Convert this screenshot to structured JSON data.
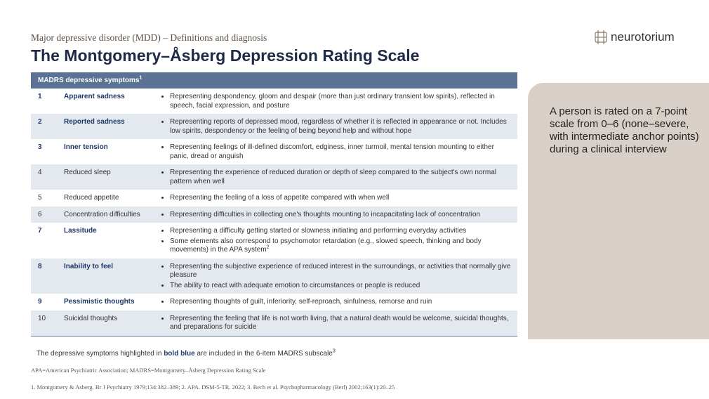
{
  "header": {
    "subtitle": "Major depressive disorder (MDD) – Definitions and diagnosis",
    "title": "The Montgomery–Åsberg Depression Rating Scale",
    "logo": "neurotorium"
  },
  "table": {
    "header": {
      "text": "MADRS depressive symptoms",
      "sup": "1"
    },
    "rows": [
      {
        "number": 1,
        "symptom": "Apparent sadness",
        "highlighted": true,
        "bullets": [
          "Representing despondency, gloom and despair (more than just ordinary transient low spirits), reflected in speech, facial expression, and posture"
        ]
      },
      {
        "number": 2,
        "symptom": "Reported sadness",
        "highlighted": true,
        "bullets": [
          "Representing reports of depressed mood, regardless of whether it is reflected in appearance or not. Includes low spirits, despondency or the feeling of being beyond help and without hope"
        ]
      },
      {
        "number": 3,
        "symptom": "Inner tension",
        "highlighted": true,
        "bullets": [
          "Representing feelings of ill-defined discomfort, edginess, inner turmoil, mental tension mounting to either panic, dread or anguish"
        ]
      },
      {
        "number": 4,
        "symptom": "Reduced sleep",
        "highlighted": false,
        "bullets": [
          "Representing the experience of reduced duration or depth of sleep compared to the subject's own normal pattern when well"
        ]
      },
      {
        "number": 5,
        "symptom": "Reduced appetite",
        "highlighted": false,
        "bullets": [
          "Representing the feeling of a loss of appetite compared with when well"
        ]
      },
      {
        "number": 6,
        "symptom": "Concentration difficulties",
        "highlighted": false,
        "bullets": [
          "Representing difficulties in collecting one's thoughts mounting to incapacitating lack of concentration"
        ]
      },
      {
        "number": 7,
        "symptom": "Lassitude",
        "highlighted": true,
        "bullets": [
          "Representing a difficulty getting started or slowness initiating and performing everyday activities",
          {
            "text": "Some elements also correspond to psychomotor retardation (e.g., slowed speech, thinking and body movements) in the APA system",
            "sup": "2"
          }
        ]
      },
      {
        "number": 8,
        "symptom": "Inability to feel",
        "highlighted": true,
        "bullets": [
          "Representing the subjective experience of reduced interest in the surroundings, or activities that normally give pleasure",
          "The ability to react with adequate emotion to circumstances or people is reduced"
        ]
      },
      {
        "number": 9,
        "symptom": "Pessimistic thoughts",
        "highlighted": true,
        "bullets": [
          "Representing thoughts of guilt, inferiority, self-reproach, sinfulness, remorse and ruin"
        ]
      },
      {
        "number": 10,
        "symptom": "Suicidal thoughts",
        "highlighted": false,
        "bullets": [
          "Representing the feeling that life is not worth living, that a natural death would be welcome, suicidal thoughts, and preparations for suicide"
        ]
      }
    ]
  },
  "note": {
    "before": "The depressive symptoms highlighted in ",
    "emphasis": "bold blue",
    "after": " are included in the 6-item MADRS subscale",
    "sup": "3"
  },
  "abbreviations": "APA=American Psychiatric Association; MADRS=Montgomery–Åsberg Depression Rating Scale",
  "references": "1. Montgomery & Asberg. Br J Psychiatry 1979;134:382–389; 2. APA. DSM-5-TR. 2022; 3. Bech et al. Psychopharmacology (Berl) 2002;163(1):20–25",
  "panel": {
    "text": "A person is rated on a 7-point scale from 0–6 (none–severe, with intermediate anchor points) during a clinical interview"
  }
}
